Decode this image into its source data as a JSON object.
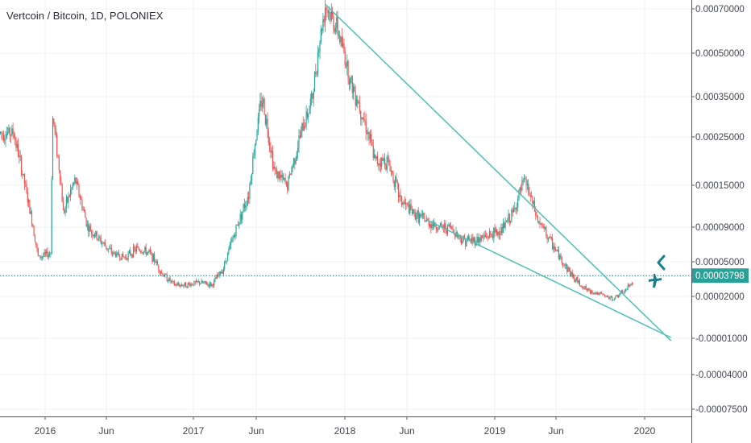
{
  "title": "Vertcoin / Bitcoin, 1D, POLONIEX",
  "colors": {
    "up": "#26a69a",
    "down": "#ef5350",
    "trendline": "#4dc0b5",
    "price_line": "#1b8a7e",
    "price_badge": "#2aa198",
    "grid": "#eef0f3"
  },
  "icons": {
    "marker_top": "chevron-left-icon",
    "marker_bottom": "airplane-icon"
  },
  "chart_data": {
    "type": "candlestick",
    "title": "Vertcoin / Bitcoin, 1D, POLONIEX",
    "interval": "1D",
    "exchange": "POLONIEX",
    "y_ticks": [
      "0.00070000",
      "0.00050000",
      "0.00035000",
      "0.00025000",
      "0.00015000",
      "0.00009000",
      "0.00005000",
      "0.00002000",
      "-0.00001000",
      "-0.00004000",
      "-0.00007500"
    ],
    "x_ticks": [
      "2016",
      "Jun",
      "2017",
      "Jun",
      "2018",
      "Jun",
      "2019",
      "Jun",
      "2020"
    ],
    "current_price": "0.00003798",
    "series": [
      {
        "values": [
          [
            "2015-10",
            0.00026
          ],
          [
            "2015-11",
            0.00014
          ],
          [
            "2015-12",
            5.5e-05
          ],
          [
            "2016-01",
            6e-05
          ],
          [
            "2016-01-20",
            0.0003
          ],
          [
            "2016-02",
            0.00011
          ],
          [
            "2016-03",
            0.00016
          ],
          [
            "2016-04",
            9e-05
          ],
          [
            "2016-05",
            7.5e-05
          ],
          [
            "2016-06",
            6e-05
          ],
          [
            "2016-07",
            5.5e-05
          ],
          [
            "2016-08",
            6.5e-05
          ],
          [
            "2016-09",
            6e-05
          ],
          [
            "2016-10",
            4e-05
          ],
          [
            "2016-11",
            3e-05
          ],
          [
            "2016-12",
            3e-05
          ],
          [
            "2017-01",
            3.2e-05
          ],
          [
            "2017-02",
            3e-05
          ],
          [
            "2017-03",
            4.5e-05
          ],
          [
            "2017-04",
            9e-05
          ],
          [
            "2017-05",
            0.00014
          ],
          [
            "2017-06",
            0.00035
          ],
          [
            "2017-07",
            0.00018
          ],
          [
            "2017-08",
            0.00015
          ],
          [
            "2017-09",
            0.00025
          ],
          [
            "2017-10",
            0.00035
          ],
          [
            "2017-11",
            0.00072
          ],
          [
            "2017-12",
            0.0006
          ],
          [
            "2018-01",
            0.0004
          ],
          [
            "2018-02",
            0.0003
          ],
          [
            "2018-03",
            0.0002
          ],
          [
            "2018-04",
            0.0002
          ],
          [
            "2018-05",
            0.00013
          ],
          [
            "2018-06",
            0.00011
          ],
          [
            "2018-07",
            0.0001
          ],
          [
            "2018-08",
            9e-05
          ],
          [
            "2018-09",
            9e-05
          ],
          [
            "2018-10",
            7.5e-05
          ],
          [
            "2018-11",
            7.5e-05
          ],
          [
            "2018-12",
            8e-05
          ],
          [
            "2019-01",
            8.5e-05
          ],
          [
            "2019-02",
            0.00011
          ],
          [
            "2019-03",
            0.00016
          ],
          [
            "2019-04",
            0.0001
          ],
          [
            "2019-05",
            7.5e-05
          ],
          [
            "2019-06",
            5e-05
          ],
          [
            "2019-07",
            3.5e-05
          ],
          [
            "2019-08",
            2.5e-05
          ],
          [
            "2019-09",
            2.2e-05
          ],
          [
            "2019-10",
            1.8e-05
          ],
          [
            "2019-11",
            2.5e-05
          ],
          [
            "2019-12",
            3.798e-05
          ]
        ]
      }
    ],
    "trendlines": [
      {
        "from": [
          "2017-11-15",
          0.00072
        ],
        "to": [
          "2020-03-05",
          -1.2e-05
        ]
      },
      {
        "from": [
          "2018-07-20",
          0.0001
        ],
        "to": [
          "2020-03-05",
          -9.5e-06
        ]
      }
    ],
    "horizontal_line": 3.798e-05,
    "grid": true
  }
}
